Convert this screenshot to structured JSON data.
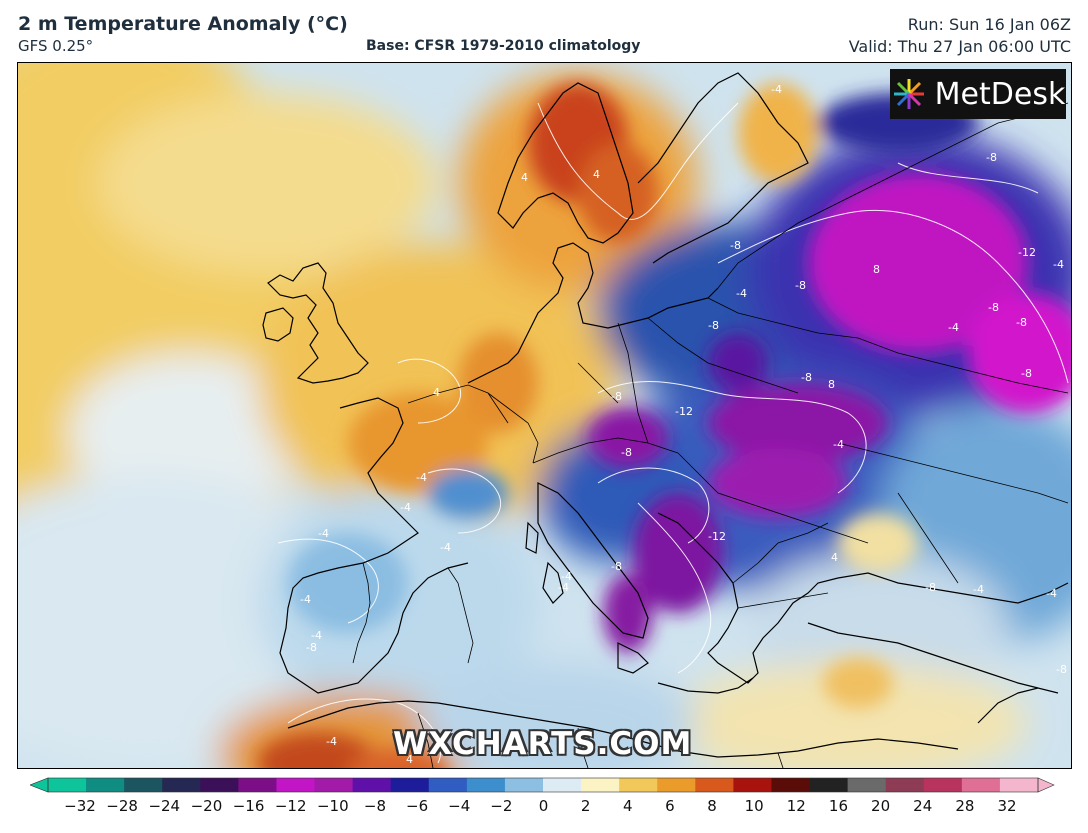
{
  "header": {
    "title": "2 m Temperature Anomaly (°C)",
    "model": "GFS 0.25°",
    "base": "Base: CFSR 1979-2010 climatology",
    "run": "Run: Sun 16 Jan 06Z",
    "valid": "Valid: Thu 27 Jan 06:00 UTC"
  },
  "logo": {
    "text": "MetDesk"
  },
  "watermark": {
    "text": "WXCHARTS.COM"
  },
  "colorbar": {
    "ticks": [
      "−32",
      "−28",
      "−24",
      "−20",
      "−16",
      "−12",
      "−10",
      "−8",
      "−6",
      "−4",
      "−2",
      "0",
      "2",
      "4",
      "6",
      "8",
      "10",
      "12",
      "16",
      "20",
      "24",
      "28",
      "32"
    ],
    "colors": [
      "#0ec49a",
      "#0f8d83",
      "#1b5660",
      "#242852",
      "#3b1058",
      "#7c0f88",
      "#c215c6",
      "#a21ba8",
      "#5e10a8",
      "#1d1c9a",
      "#2f5dc2",
      "#3c8fcc",
      "#8dbfe3",
      "#dcebf4",
      "#fbf3c4",
      "#f3c85a",
      "#eb9b2a",
      "#d8591b",
      "#a8130e",
      "#5a0c08",
      "#222222",
      "#6a6a6a",
      "#8e3b56",
      "#b8345f",
      "#e06f95",
      "#f3b6cc"
    ]
  },
  "contour_labels": [
    "4",
    "4",
    "4",
    "-4",
    "-4",
    "-8",
    "-8",
    "-8",
    "-12",
    "-8",
    "-8",
    "-4",
    "-8",
    "-8",
    "-12",
    "-8",
    "-8",
    "-4",
    "-8",
    "-12",
    "-8",
    "-4",
    "-4",
    "-4",
    "-4",
    "-4",
    "-4",
    "-8",
    "-4",
    "-4",
    "-8",
    "-8",
    "-4",
    "4",
    "4",
    "8",
    "8",
    "-4",
    "-4",
    "-4"
  ]
}
